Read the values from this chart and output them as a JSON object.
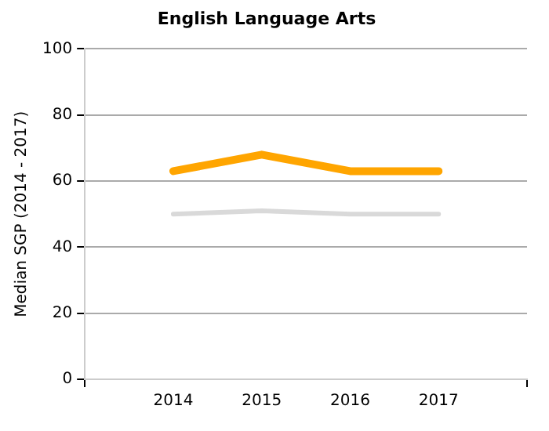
{
  "chart_data": {
    "type": "line",
    "title": "English Language Arts",
    "ylabel": "Median SGP (2014 - 2017)",
    "x": [
      2014,
      2015,
      2016,
      2017
    ],
    "series": [
      {
        "color": "#ffa500",
        "values": [
          63,
          68,
          63,
          63
        ]
      },
      {
        "color": "#d9d9d9",
        "values": [
          50,
          51,
          50,
          50
        ]
      }
    ],
    "xlim": [
      2013,
      2018
    ],
    "xticks": [
      {
        "value": 2013,
        "label": null
      },
      2014,
      2015,
      2016,
      2017,
      {
        "value": 2018,
        "label": null
      }
    ],
    "ylim": [
      0,
      100
    ],
    "yticks": [
      0,
      20,
      40,
      60,
      80,
      100
    ],
    "grid": "y",
    "legend": false,
    "marker": "none",
    "line_style": "solid"
  }
}
